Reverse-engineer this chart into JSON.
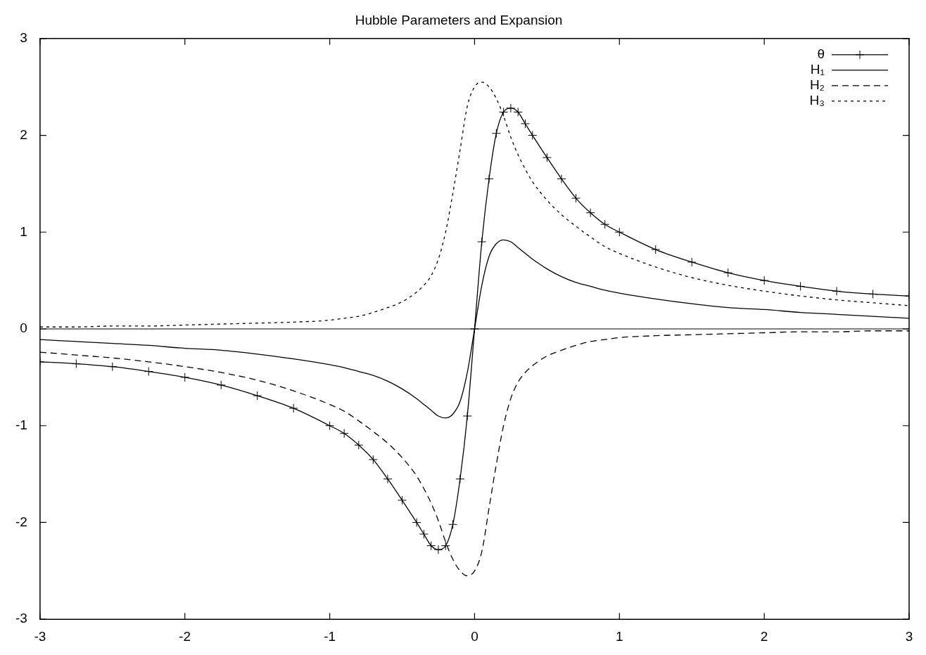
{
  "chart_data": {
    "type": "line",
    "title": "Hubble Parameters and Expansion",
    "x": [
      -3,
      -2.75,
      -2.5,
      -2.25,
      -2,
      -1.75,
      -1.5,
      -1.25,
      -1,
      -0.9,
      -0.8,
      -0.7,
      -0.6,
      -0.5,
      -0.4,
      -0.35,
      -0.3,
      -0.25,
      -0.2,
      -0.15,
      -0.1,
      -0.05,
      0,
      0.05,
      0.1,
      0.15,
      0.2,
      0.25,
      0.3,
      0.35,
      0.4,
      0.5,
      0.6,
      0.7,
      0.8,
      0.9,
      1,
      1.25,
      1.5,
      1.75,
      2,
      2.25,
      2.5,
      2.75,
      3
    ],
    "series": [
      {
        "name": "θ",
        "color": "#000000",
        "marker": "cross",
        "line_style": "solid",
        "values": [
          -0.34,
          -0.36,
          -0.39,
          -0.44,
          -0.5,
          -0.58,
          -0.69,
          -0.82,
          -1.0,
          -1.08,
          -1.2,
          -1.35,
          -1.55,
          -1.77,
          -2.0,
          -2.12,
          -2.24,
          -2.28,
          -2.24,
          -2.02,
          -1.55,
          -0.9,
          0,
          0.9,
          1.55,
          2.02,
          2.24,
          2.28,
          2.24,
          2.12,
          2.0,
          1.77,
          1.55,
          1.35,
          1.2,
          1.08,
          1.0,
          0.82,
          0.69,
          0.58,
          0.5,
          0.44,
          0.39,
          0.36,
          0.34
        ]
      },
      {
        "name": "H₁",
        "color": "#000000",
        "marker": "none",
        "line_style": "solid",
        "values": [
          -0.11,
          -0.13,
          -0.15,
          -0.17,
          -0.2,
          -0.22,
          -0.26,
          -0.31,
          -0.37,
          -0.4,
          -0.44,
          -0.48,
          -0.54,
          -0.62,
          -0.72,
          -0.78,
          -0.84,
          -0.9,
          -0.92,
          -0.88,
          -0.75,
          -0.45,
          0,
          0.45,
          0.75,
          0.88,
          0.92,
          0.9,
          0.84,
          0.78,
          0.72,
          0.62,
          0.54,
          0.48,
          0.44,
          0.4,
          0.37,
          0.31,
          0.26,
          0.22,
          0.2,
          0.17,
          0.15,
          0.13,
          0.11
        ]
      },
      {
        "name": "H₂",
        "color": "#000000",
        "marker": "none",
        "line_style": "dashed",
        "values": [
          -0.24,
          -0.27,
          -0.3,
          -0.34,
          -0.39,
          -0.45,
          -0.53,
          -0.64,
          -0.78,
          -0.85,
          -0.95,
          -1.06,
          -1.18,
          -1.33,
          -1.52,
          -1.65,
          -1.8,
          -1.98,
          -2.2,
          -2.38,
          -2.5,
          -2.55,
          -2.5,
          -2.3,
          -1.85,
          -1.4,
          -1.0,
          -0.72,
          -0.55,
          -0.45,
          -0.38,
          -0.28,
          -0.22,
          -0.17,
          -0.13,
          -0.11,
          -0.09,
          -0.07,
          -0.06,
          -0.05,
          -0.04,
          -0.03,
          -0.03,
          -0.02,
          -0.02
        ]
      },
      {
        "name": "H₃",
        "color": "#000000",
        "marker": "none",
        "line_style": "dotted",
        "values": [
          0.02,
          0.02,
          0.03,
          0.03,
          0.04,
          0.05,
          0.06,
          0.07,
          0.09,
          0.11,
          0.13,
          0.17,
          0.22,
          0.28,
          0.38,
          0.45,
          0.55,
          0.72,
          1.0,
          1.4,
          1.85,
          2.3,
          2.5,
          2.55,
          2.5,
          2.38,
          2.2,
          1.98,
          1.8,
          1.65,
          1.52,
          1.33,
          1.18,
          1.06,
          0.95,
          0.85,
          0.78,
          0.64,
          0.53,
          0.45,
          0.39,
          0.34,
          0.3,
          0.27,
          0.24
        ]
      }
    ],
    "xlim": [
      -3,
      3
    ],
    "xticks": [
      -3,
      -2,
      -1,
      0,
      1,
      2,
      3
    ],
    "ylim": [
      -3,
      3
    ],
    "yticks": [
      -3,
      -2,
      -1,
      0,
      1,
      2,
      3
    ],
    "ref_lines": [
      {
        "axis": "y",
        "value": 0,
        "color": "#000000"
      }
    ],
    "legend": "top right",
    "grid": false
  }
}
